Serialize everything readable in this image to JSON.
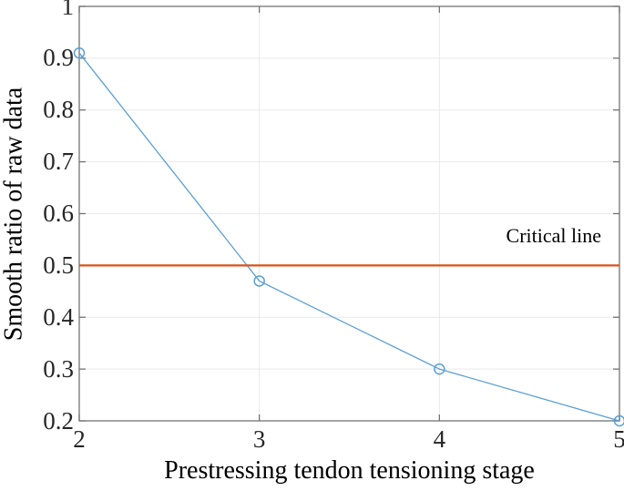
{
  "chart_data": {
    "type": "line",
    "title": "",
    "xlabel": "Prestressing tendon tensioning stage",
    "ylabel": "Smooth ratio of raw data",
    "xlim": [
      2,
      5
    ],
    "ylim": [
      0.2,
      1
    ],
    "grid": true,
    "legend": "none",
    "frame_color": "#737373",
    "grid_color": "#e9e9e9",
    "background": "#ffffff",
    "xticks": {
      "values": [
        2,
        3,
        4,
        5
      ],
      "labels": [
        "2",
        "3",
        "4",
        "5"
      ]
    },
    "yticks": {
      "values": [
        0.2,
        0.3,
        0.4,
        0.5,
        0.6,
        0.7,
        0.8,
        0.9,
        1
      ],
      "labels": [
        "0.2",
        "0.3",
        "0.4",
        "0.5",
        "0.6",
        "0.7",
        "0.8",
        "0.9",
        "1"
      ]
    },
    "series": [
      {
        "name": "smooth-ratio-series",
        "type": "line",
        "marker": "open-circle",
        "color": "#5b9fd6",
        "x": [
          2,
          3,
          4,
          5
        ],
        "y": [
          0.91,
          0.47,
          0.3,
          0.2
        ]
      },
      {
        "name": "critical-line-series",
        "type": "hline",
        "color": "#d95319",
        "y": 0.5
      }
    ],
    "annotations": [
      {
        "text": "Critical line",
        "x": 4.89,
        "y": 0.55,
        "color": "#000000"
      }
    ]
  }
}
